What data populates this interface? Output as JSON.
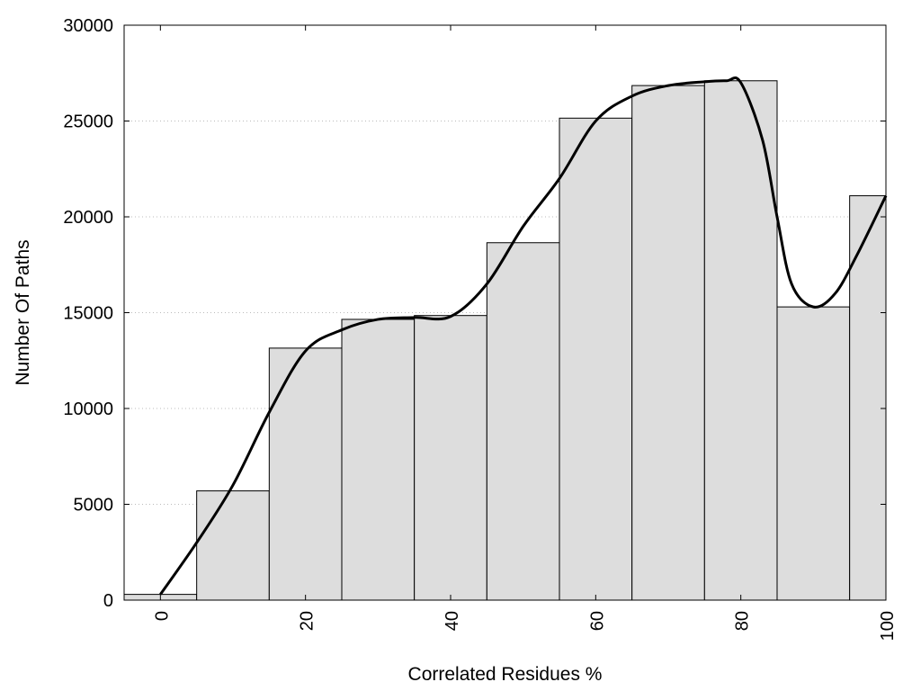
{
  "chart_data": {
    "type": "bar",
    "title": "",
    "xlabel": "Correlated Residues %",
    "ylabel": "Number Of Paths",
    "xlim": [
      -5,
      100
    ],
    "ylim": [
      0,
      30000
    ],
    "grid": true,
    "bar_width": 10,
    "bar_color": "#dddddd",
    "bar_edge_color": "#000000",
    "x": [
      0,
      10,
      20,
      30,
      40,
      50,
      60,
      70,
      80,
      90,
      100
    ],
    "values": [
      300,
      5700,
      13150,
      14650,
      14850,
      18650,
      25150,
      26850,
      27100,
      15300,
      21100
    ],
    "x_ticks": [
      0,
      20,
      40,
      60,
      80,
      100
    ],
    "x_tick_labels": [
      "0",
      "20",
      "40",
      "60",
      "80",
      "100"
    ],
    "y_ticks": [
      0,
      5000,
      10000,
      15000,
      20000,
      25000,
      30000
    ],
    "y_tick_labels": [
      "0",
      "5000",
      "10000",
      "15000",
      "20000",
      "25000",
      "30000"
    ],
    "curve": {
      "color": "#000000",
      "x": [
        0,
        5,
        10,
        15,
        20,
        25,
        30,
        35,
        40,
        45,
        50,
        55,
        60,
        65,
        70,
        75,
        78,
        80,
        83,
        85,
        87,
        90,
        93,
        96,
        100
      ],
      "y": [
        300,
        3000,
        6000,
        9800,
        13000,
        14100,
        14650,
        14750,
        14800,
        16500,
        19500,
        22000,
        25000,
        26300,
        26850,
        27050,
        27100,
        27000,
        24000,
        20000,
        16500,
        15300,
        16000,
        18000,
        21100
      ]
    }
  }
}
